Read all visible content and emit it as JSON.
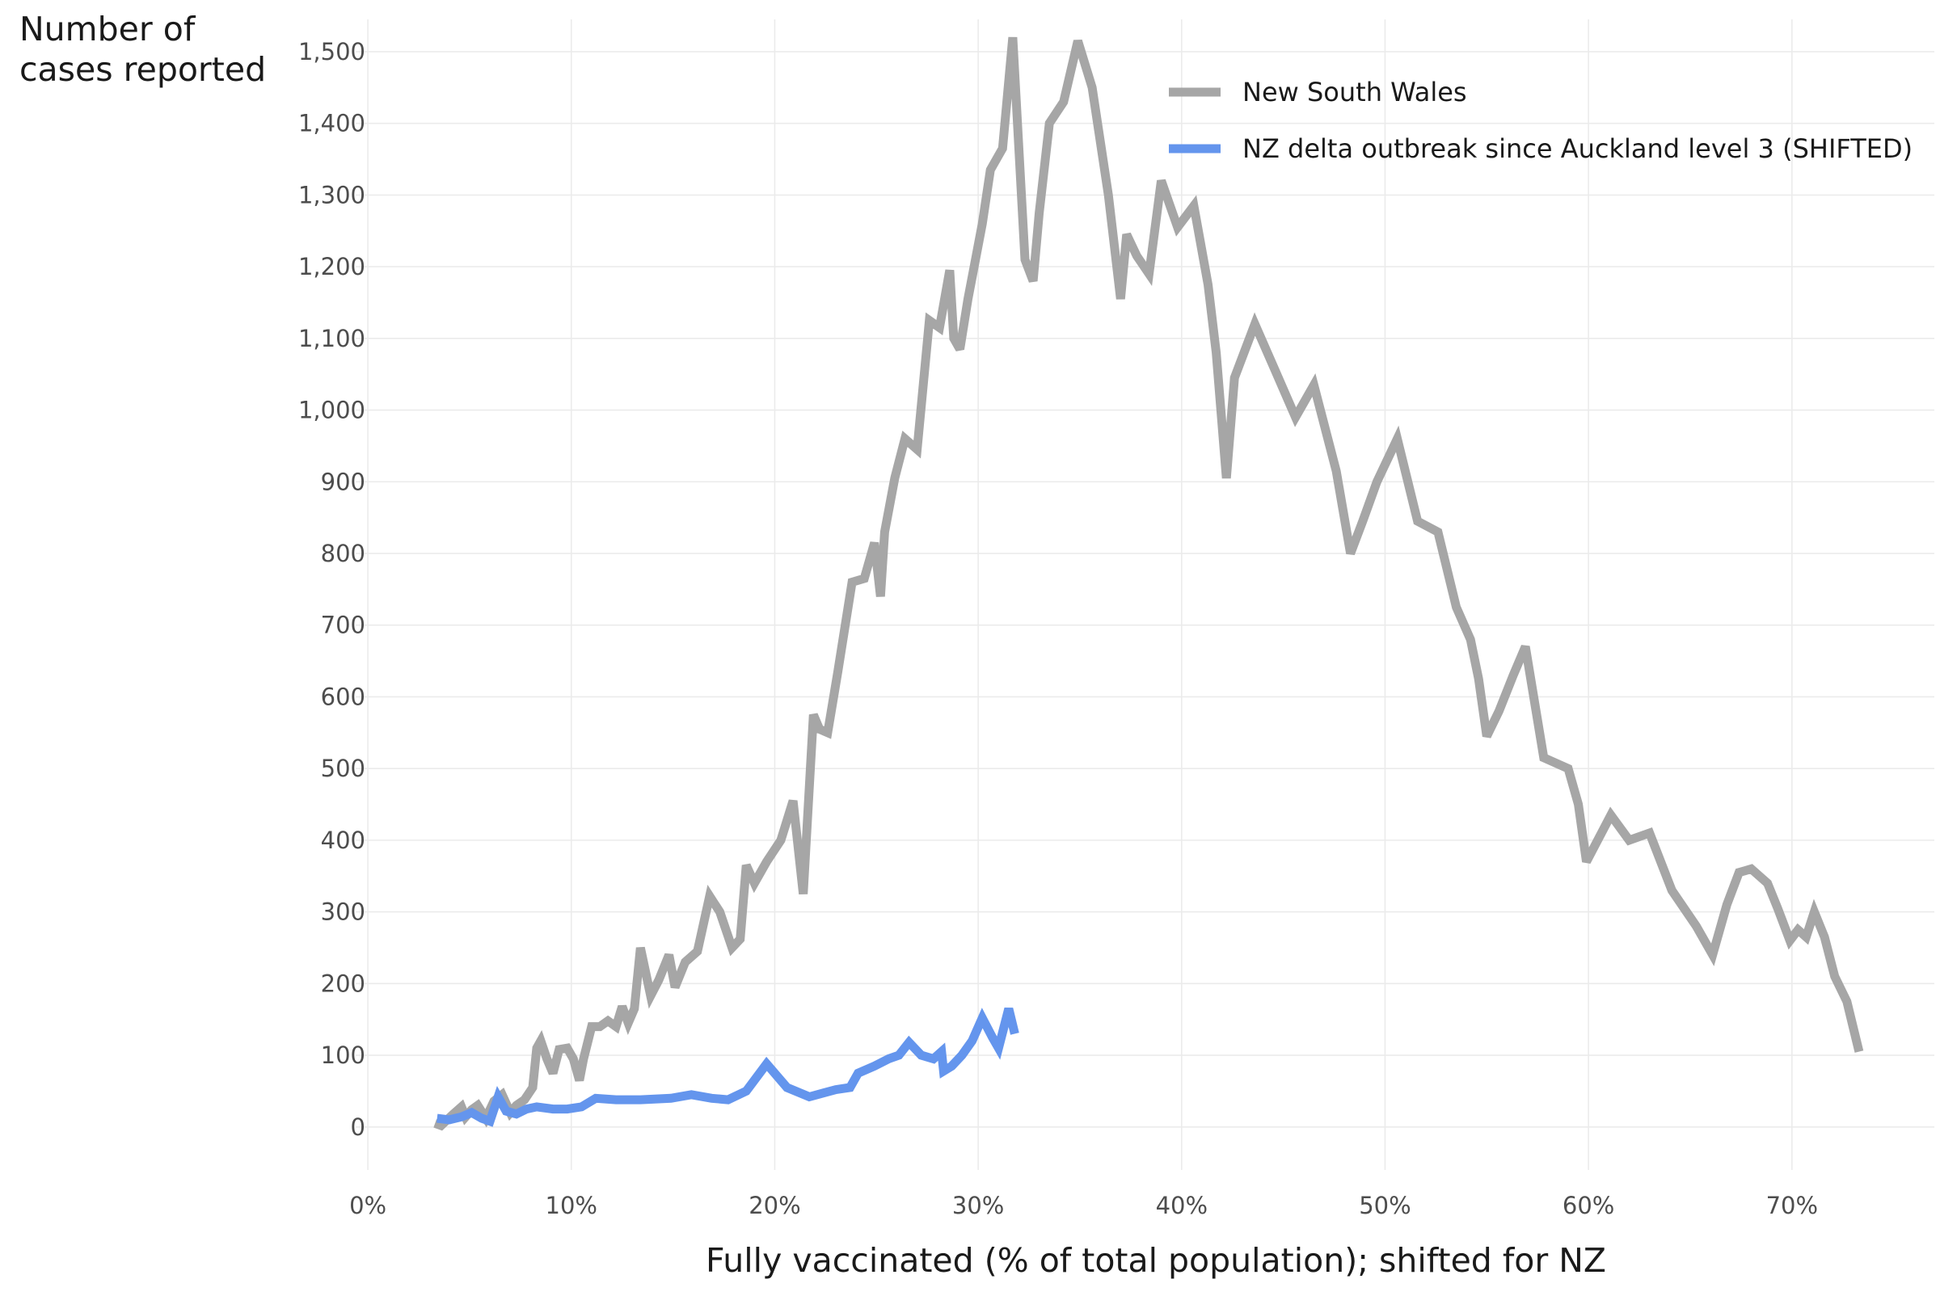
{
  "chart_data": {
    "type": "line",
    "title": "",
    "xlabel": "Fully vaccinated (% of total population); shifted for NZ",
    "ylabel_lines": [
      "Number of",
      "cases reported"
    ],
    "x_unit": "%",
    "xlim": [
      -0.6,
      77
    ],
    "ylim": [
      -60,
      1545
    ],
    "x_ticks": [
      0,
      10,
      20,
      30,
      40,
      50,
      60,
      70
    ],
    "x_tick_labels": [
      "0%",
      "10%",
      "20%",
      "30%",
      "40%",
      "50%",
      "60%",
      "70%"
    ],
    "y_ticks": [
      0,
      100,
      200,
      300,
      400,
      500,
      600,
      700,
      800,
      900,
      1000,
      1100,
      1200,
      1300,
      1400,
      1500
    ],
    "y_tick_labels": [
      "0",
      "100",
      "200",
      "300",
      "400",
      "500",
      "600",
      "700",
      "800",
      "900",
      "1,000",
      "1,100",
      "1,200",
      "1,300",
      "1,400",
      "1,500"
    ],
    "grid": true,
    "legend_position": "top-right",
    "series": [
      {
        "name": "New South Wales",
        "color": "#a6a6a6",
        "x": [
          3.3,
          3.6,
          3.9,
          4.2,
          4.6,
          4.8,
          5.1,
          5.4,
          5.8,
          6.2,
          6.6,
          7.0,
          7.3,
          7.7,
          8.1,
          8.3,
          8.5,
          8.8,
          9.1,
          9.4,
          9.8,
          10.1,
          10.4,
          10.6,
          11.0,
          11.4,
          11.8,
          12.2,
          12.5,
          12.8,
          13.1,
          13.4,
          13.9,
          14.3,
          14.8,
          15.1,
          15.6,
          16.2,
          16.8,
          17.3,
          17.9,
          18.3,
          18.6,
          19.0,
          19.6,
          20.3,
          20.9,
          21.4,
          21.9,
          22.2,
          22.6,
          23.1,
          23.8,
          24.4,
          24.9,
          25.2,
          25.4,
          25.9,
          26.4,
          27.0,
          27.6,
          28.1,
          28.6,
          28.8,
          29.1,
          29.5,
          29.8,
          30.2,
          30.6,
          31.2,
          31.7,
          32.3,
          32.7,
          33.0,
          33.5,
          34.2,
          34.9,
          35.6,
          36.4,
          37.0,
          37.3,
          37.8,
          38.4,
          39.0,
          39.8,
          40.6,
          41.3,
          41.7,
          42.2,
          42.6,
          43.6,
          44.6,
          45.6,
          46.5,
          47.6,
          48.3,
          48.9,
          49.6,
          50.6,
          51.6,
          52.6,
          53.5,
          54.2,
          54.6,
          55.0,
          55.6,
          56.3,
          56.9,
          57.8,
          59.0,
          59.5,
          59.9,
          61.1,
          62.0,
          63.0,
          64.1,
          65.3,
          66.1,
          66.8,
          67.4,
          68.0,
          68.8,
          69.3,
          69.9,
          70.3,
          70.7,
          71.1,
          71.6,
          72.1,
          72.7,
          73.3
        ],
        "values": [
          5,
          2,
          10,
          18,
          28,
          14,
          24,
          30,
          12,
          36,
          45,
          20,
          30,
          38,
          55,
          110,
          120,
          95,
          75,
          108,
          110,
          95,
          65,
          95,
          140,
          140,
          148,
          140,
          168,
          145,
          165,
          250,
          183,
          205,
          240,
          195,
          230,
          245,
          322,
          300,
          250,
          262,
          365,
          340,
          370,
          400,
          455,
          325,
          575,
          555,
          550,
          635,
          760,
          765,
          815,
          740,
          830,
          905,
          960,
          945,
          1125,
          1115,
          1195,
          1100,
          1085,
          1155,
          1200,
          1260,
          1335,
          1365,
          1520,
          1210,
          1180,
          1275,
          1400,
          1430,
          1515,
          1450,
          1300,
          1155,
          1245,
          1215,
          1190,
          1320,
          1255,
          1285,
          1175,
          1080,
          905,
          1045,
          1120,
          1055,
          990,
          1035,
          915,
          800,
          845,
          900,
          960,
          845,
          830,
          725,
          680,
          625,
          545,
          580,
          630,
          670,
          515,
          500,
          450,
          370,
          435,
          400,
          410,
          330,
          280,
          240,
          310,
          355,
          360,
          340,
          305,
          260,
          275,
          265,
          300,
          265,
          210,
          175,
          105
        ]
      },
      {
        "name": "NZ delta outbreak since Auckland level 3 (SHIFTED)",
        "color": "#6495ed",
        "x": [
          3.4,
          4.0,
          4.6,
          5.1,
          5.6,
          6.0,
          6.4,
          6.8,
          7.3,
          7.8,
          8.3,
          9.1,
          9.8,
          10.5,
          11.2,
          12.2,
          13.4,
          14.9,
          15.9,
          16.9,
          17.7,
          18.6,
          19.6,
          20.6,
          21.7,
          23.0,
          23.7,
          24.1,
          24.9,
          25.6,
          26.1,
          26.6,
          27.2,
          27.8,
          28.2,
          28.3,
          28.7,
          29.2,
          29.7,
          30.2,
          30.7,
          31.0,
          31.5,
          31.8
        ],
        "values": [
          12,
          10,
          14,
          20,
          12,
          8,
          42,
          22,
          18,
          25,
          28,
          25,
          25,
          28,
          40,
          38,
          38,
          40,
          45,
          40,
          38,
          50,
          88,
          55,
          42,
          52,
          55,
          75,
          85,
          95,
          100,
          118,
          100,
          95,
          105,
          78,
          85,
          100,
          120,
          152,
          125,
          110,
          165,
          130
        ]
      }
    ]
  }
}
